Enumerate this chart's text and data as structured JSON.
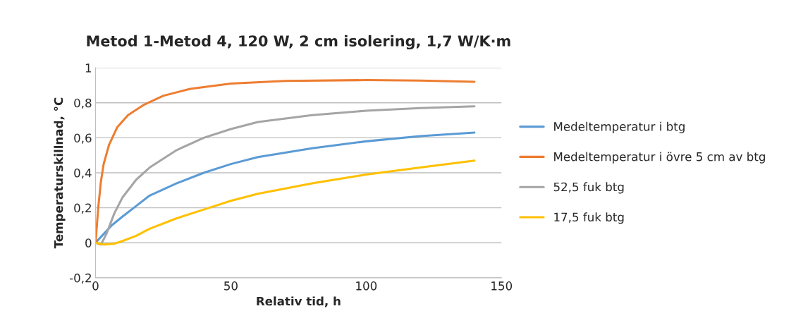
{
  "chart_data": {
    "type": "line",
    "title": "Metod 1-Metod 4, 120 W, 2 cm isolering, 1,7 W/K·m",
    "xlabel": "Relativ tid, h",
    "ylabel": "Temperaturskillnad, °C",
    "xlim": [
      0,
      150
    ],
    "xticks": [
      0,
      50,
      100,
      150
    ],
    "ylim": [
      -0.2,
      1
    ],
    "yticks": [
      {
        "value": -0.2,
        "label": "-0,2"
      },
      0,
      {
        "value": 0.2,
        "label": "0,2"
      },
      {
        "value": 0.4,
        "label": "0,4"
      },
      {
        "value": 0.6,
        "label": "0,6"
      },
      {
        "value": 0.8,
        "label": "0,8"
      },
      1
    ],
    "grid": "y",
    "legend": "right",
    "marker": "none",
    "line_style": "solid",
    "series": [
      {
        "name": "Medeltemperatur i btg",
        "color": "#5b9bd5",
        "x": [
          0,
          3,
          6,
          10,
          15,
          20,
          30,
          40,
          50,
          60,
          80,
          100,
          120,
          140
        ],
        "values": [
          0,
          0.05,
          0.1,
          0.15,
          0.21,
          0.27,
          0.34,
          0.4,
          0.45,
          0.49,
          0.54,
          0.58,
          0.61,
          0.63
        ]
      },
      {
        "name": "Medeltemperatur i övre 5 cm av btg",
        "color": "#ed7d31",
        "x": [
          0,
          1,
          2,
          3,
          5,
          8,
          12,
          18,
          25,
          35,
          50,
          70,
          100,
          120,
          140
        ],
        "values": [
          0,
          0.2,
          0.35,
          0.45,
          0.56,
          0.66,
          0.73,
          0.79,
          0.84,
          0.88,
          0.91,
          0.925,
          0.93,
          0.927,
          0.92
        ]
      },
      {
        "name": "52,5 fuk btg",
        "color": "#a5a5a5",
        "x": [
          0,
          2,
          4,
          7,
          10,
          15,
          20,
          30,
          40,
          50,
          60,
          80,
          100,
          120,
          140
        ],
        "values": [
          0,
          -0.01,
          0.05,
          0.17,
          0.26,
          0.36,
          0.43,
          0.53,
          0.6,
          0.65,
          0.69,
          0.73,
          0.755,
          0.77,
          0.78
        ]
      },
      {
        "name": "17,5 fuk btg",
        "color": "#ffc000",
        "x": [
          0,
          3,
          7,
          10,
          15,
          20,
          30,
          40,
          50,
          60,
          80,
          100,
          120,
          140
        ],
        "values": [
          0,
          -0.01,
          -0.005,
          0.01,
          0.04,
          0.08,
          0.14,
          0.19,
          0.24,
          0.28,
          0.34,
          0.39,
          0.43,
          0.47
        ]
      }
    ]
  }
}
